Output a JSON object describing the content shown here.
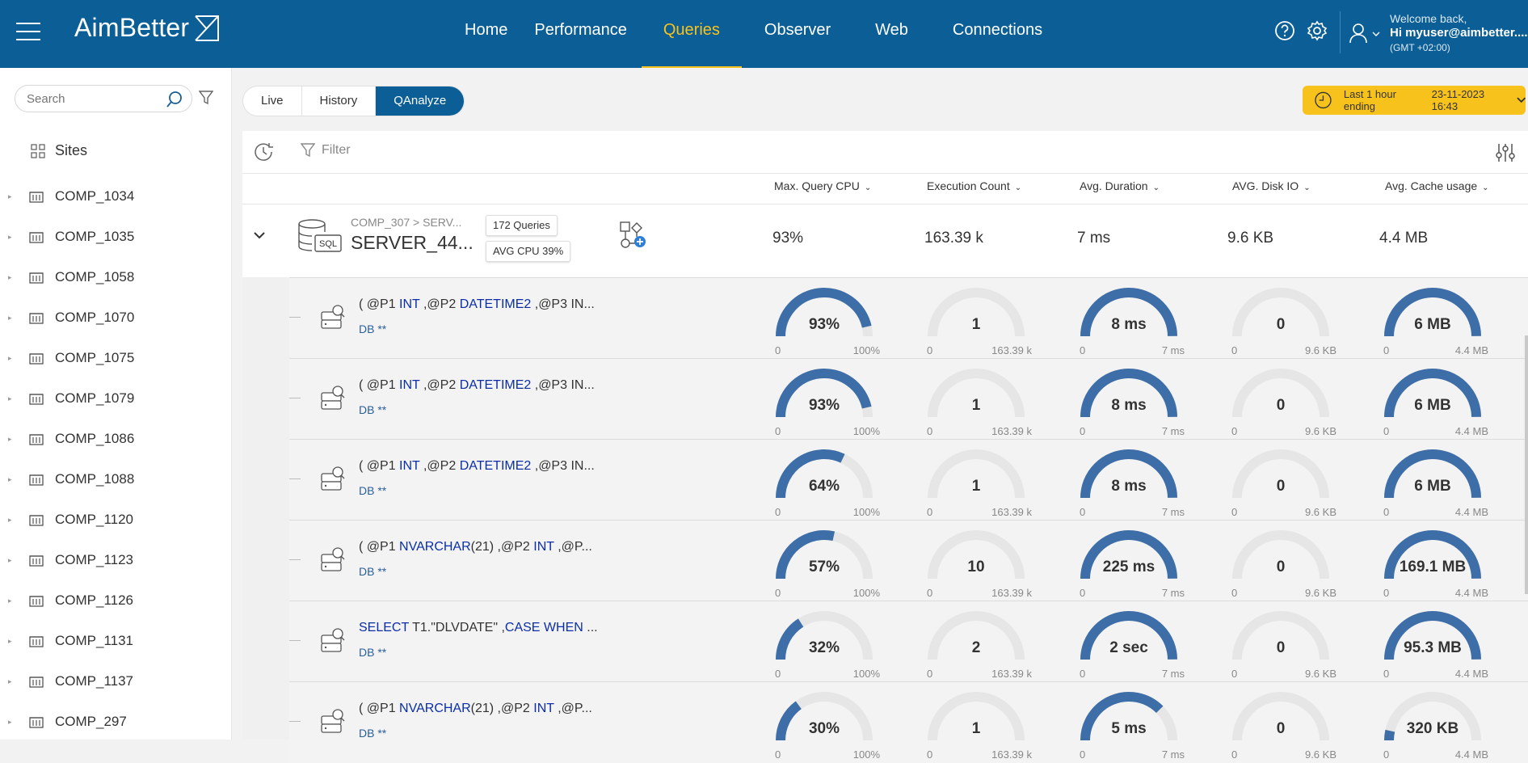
{
  "header": {
    "logo": "AimBetter",
    "nav": [
      "Home",
      "Performance",
      "Queries",
      "Observer",
      "Web",
      "Connections"
    ],
    "active_nav": "Queries",
    "welcome_line1": "Welcome back,",
    "welcome_line2": "Hi myuser@aimbetter....",
    "welcome_line3": "(GMT +02:00)"
  },
  "sidebar": {
    "search_placeholder": "Search",
    "sites_label": "Sites",
    "items": [
      "COMP_1034",
      "COMP_1035",
      "COMP_1058",
      "COMP_1070",
      "COMP_1075",
      "COMP_1079",
      "COMP_1086",
      "COMP_1088",
      "COMP_1120",
      "COMP_1123",
      "COMP_1126",
      "COMP_1131",
      "COMP_1137",
      "COMP_297"
    ]
  },
  "view_toggle": {
    "options": [
      "Live",
      "History",
      "QAnalyze"
    ],
    "active": "QAnalyze"
  },
  "time_range": {
    "label": "Last 1 hour ending",
    "value": "23-11-2023 16:43"
  },
  "filter_label": "Filter",
  "columns": [
    "Max. Query CPU",
    "Execution Count",
    "Avg. Duration",
    "AVG. Disk IO",
    "Avg. Cache usage"
  ],
  "server": {
    "path": "COMP_307 > SERV...",
    "name": "SERVER_44...",
    "queries_badge": "172 Queries",
    "cpu_badge": "AVG CPU 39%",
    "values": [
      "93%",
      "163.39 k",
      "7 ms",
      "9.6 KB",
      "4.4 MB"
    ]
  },
  "gauge_axes": {
    "cpu": {
      "min": "0",
      "max": "100%"
    },
    "exec": {
      "min": "0",
      "max": "163.39 k"
    },
    "duration": {
      "min": "0",
      "max": "7 ms"
    },
    "disk": {
      "min": "0",
      "max": "9.6 KB"
    },
    "cache": {
      "min": "0",
      "max": "4.4 MB"
    }
  },
  "queries": [
    {
      "text": [
        [
          "( ",
          ""
        ],
        [
          "@P1 ",
          ""
        ],
        [
          "INT",
          "kw"
        ],
        [
          " ,@P2 ",
          ""
        ],
        [
          "DATETIME2",
          "kw"
        ],
        [
          " ,@P3 IN...",
          ""
        ]
      ],
      "db": "DB **",
      "cpu": {
        "label": "93%",
        "fill": 0.93
      },
      "exec": {
        "label": "1",
        "fill": 0
      },
      "duration": {
        "label": "8 ms",
        "fill": 1
      },
      "disk": {
        "label": "0",
        "fill": 0
      },
      "cache": {
        "label": "6 MB",
        "fill": 1
      }
    },
    {
      "text": [
        [
          "( ",
          ""
        ],
        [
          "@P1 ",
          ""
        ],
        [
          "INT",
          "kw"
        ],
        [
          " ,@P2 ",
          ""
        ],
        [
          "DATETIME2",
          "kw"
        ],
        [
          " ,@P3 IN...",
          ""
        ]
      ],
      "db": "DB **",
      "cpu": {
        "label": "93%",
        "fill": 0.93
      },
      "exec": {
        "label": "1",
        "fill": 0
      },
      "duration": {
        "label": "8 ms",
        "fill": 1
      },
      "disk": {
        "label": "0",
        "fill": 0
      },
      "cache": {
        "label": "6 MB",
        "fill": 1
      }
    },
    {
      "text": [
        [
          "( ",
          ""
        ],
        [
          "@P1 ",
          ""
        ],
        [
          "INT",
          "kw"
        ],
        [
          " ,@P2 ",
          ""
        ],
        [
          "DATETIME2",
          "kw"
        ],
        [
          " ,@P3 IN...",
          ""
        ]
      ],
      "db": "DB **",
      "cpu": {
        "label": "64%",
        "fill": 0.64
      },
      "exec": {
        "label": "1",
        "fill": 0
      },
      "duration": {
        "label": "8 ms",
        "fill": 1
      },
      "disk": {
        "label": "0",
        "fill": 0
      },
      "cache": {
        "label": "6 MB",
        "fill": 1
      }
    },
    {
      "text": [
        [
          "( ",
          ""
        ],
        [
          "@P1 ",
          ""
        ],
        [
          "NVARCHAR",
          "kw"
        ],
        [
          "(21) ,@P2 ",
          ""
        ],
        [
          "INT",
          "kw"
        ],
        [
          " ,@P...",
          ""
        ]
      ],
      "db": "DB **",
      "cpu": {
        "label": "57%",
        "fill": 0.57
      },
      "exec": {
        "label": "10",
        "fill": 0
      },
      "duration": {
        "label": "225 ms",
        "fill": 1
      },
      "disk": {
        "label": "0",
        "fill": 0
      },
      "cache": {
        "label": "169.1 MB",
        "fill": 1
      }
    },
    {
      "text": [
        [
          "SELECT",
          "kw"
        ],
        [
          " T1.\"DLVDATE\" ,",
          ""
        ],
        [
          "CASE WHEN",
          "kw"
        ],
        [
          " ...",
          ""
        ]
      ],
      "db": "DB **",
      "cpu": {
        "label": "32%",
        "fill": 0.32
      },
      "exec": {
        "label": "2",
        "fill": 0
      },
      "duration": {
        "label": "2 sec",
        "fill": 1
      },
      "disk": {
        "label": "0",
        "fill": 0
      },
      "cache": {
        "label": "95.3 MB",
        "fill": 1
      }
    },
    {
      "text": [
        [
          "( ",
          ""
        ],
        [
          "@P1 ",
          ""
        ],
        [
          "NVARCHAR",
          "kw"
        ],
        [
          "(21) ,@P2 ",
          ""
        ],
        [
          "INT",
          "kw"
        ],
        [
          " ,@P...",
          ""
        ]
      ],
      "db": "DB **",
      "cpu": {
        "label": "30%",
        "fill": 0.3
      },
      "exec": {
        "label": "1",
        "fill": 0
      },
      "duration": {
        "label": "5 ms",
        "fill": 0.75
      },
      "disk": {
        "label": "0",
        "fill": 0
      },
      "cache": {
        "label": "320 KB",
        "fill": 0.07
      }
    }
  ],
  "colors": {
    "brand": "#0b5f96",
    "accent": "#f8c21c",
    "gauge_fill": "#3e6ea8",
    "gauge_track": "#e6e6e6",
    "keyword": "#0b2ea8"
  }
}
